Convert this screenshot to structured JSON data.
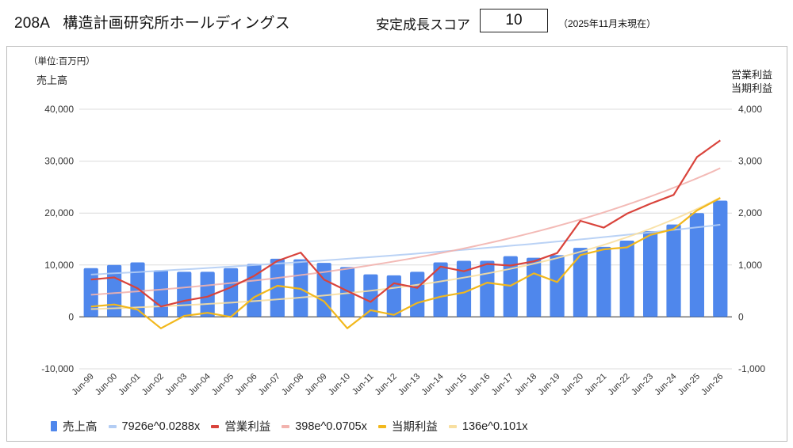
{
  "header": {
    "code": "208A",
    "company": "構造計画研究所ホールディングス",
    "score_label": "安定成長スコア",
    "score_value": "10",
    "as_of": "（2025年11月末現在）"
  },
  "chart_data": {
    "type": "bar",
    "unit_label": "（単位:百万円）",
    "ylabel_left": "売上高",
    "ylabel_right_lines": [
      "営業利益",
      "当期利益"
    ],
    "categories": [
      "Jun-99",
      "Jun-00",
      "Jun-01",
      "Jun-02",
      "Jun-03",
      "Jun-04",
      "Jun-05",
      "Jun-06",
      "Jun-07",
      "Jun-08",
      "Jun-09",
      "Jun-10",
      "Jun-11",
      "Jun-12",
      "Jun-13",
      "Jun-14",
      "Jun-15",
      "Jun-16",
      "Jun-17",
      "Jun-18",
      "Jun-19",
      "Jun-20",
      "Jun-21",
      "Jun-22",
      "Jun-23",
      "Jun-24",
      "Jun-25",
      "Jun-26"
    ],
    "ylim_left": [
      -10000,
      40000
    ],
    "yticks_left": [
      "40,000",
      "30,000",
      "20,000",
      "10,000",
      "0",
      "-10,000"
    ],
    "ylim_right": [
      -1000,
      4000
    ],
    "yticks_right": [
      "4,000",
      "3,000",
      "2,000",
      "1,000",
      "0",
      "-1,000"
    ],
    "grid": true,
    "legend_position": "bottom-left",
    "series": [
      {
        "name": "売上高",
        "type": "bar",
        "axis": "left",
        "color": "#4f87ec",
        "values": [
          9400,
          10000,
          10500,
          9000,
          8700,
          8700,
          9400,
          10200,
          11200,
          11100,
          10400,
          9600,
          8200,
          8000,
          8700,
          10500,
          10800,
          10800,
          11700,
          11400,
          11900,
          13300,
          13500,
          14700,
          16500,
          17800,
          20000,
          22400
        ]
      },
      {
        "name": "7926e^0.0288x",
        "type": "trend",
        "axis": "left",
        "color": "#b3cdf4",
        "a": 7926,
        "b": 0.0288
      },
      {
        "name": "営業利益",
        "type": "line",
        "axis": "right",
        "color": "#d9433b",
        "values": [
          720,
          760,
          550,
          200,
          310,
          390,
          570,
          790,
          1080,
          1240,
          720,
          500,
          290,
          650,
          560,
          970,
          880,
          1020,
          990,
          1070,
          1230,
          1850,
          1720,
          1990,
          2180,
          2350,
          3080,
          3400
        ]
      },
      {
        "name": "398e^0.0705x",
        "type": "trend",
        "axis": "right",
        "color": "#f2b3ae",
        "a": 398,
        "b": 0.0705
      },
      {
        "name": "当期利益",
        "type": "line",
        "axis": "right",
        "color": "#f2b81c",
        "values": [
          200,
          240,
          140,
          -220,
          20,
          80,
          0,
          380,
          600,
          540,
          300,
          -220,
          130,
          40,
          270,
          390,
          470,
          660,
          600,
          840,
          670,
          1190,
          1300,
          1340,
          1580,
          1690,
          2050,
          2290
        ]
      },
      {
        "name": "136e^0.101x",
        "type": "trend",
        "axis": "right",
        "color": "#f8dfa0",
        "a": 136,
        "b": 0.101
      }
    ]
  }
}
